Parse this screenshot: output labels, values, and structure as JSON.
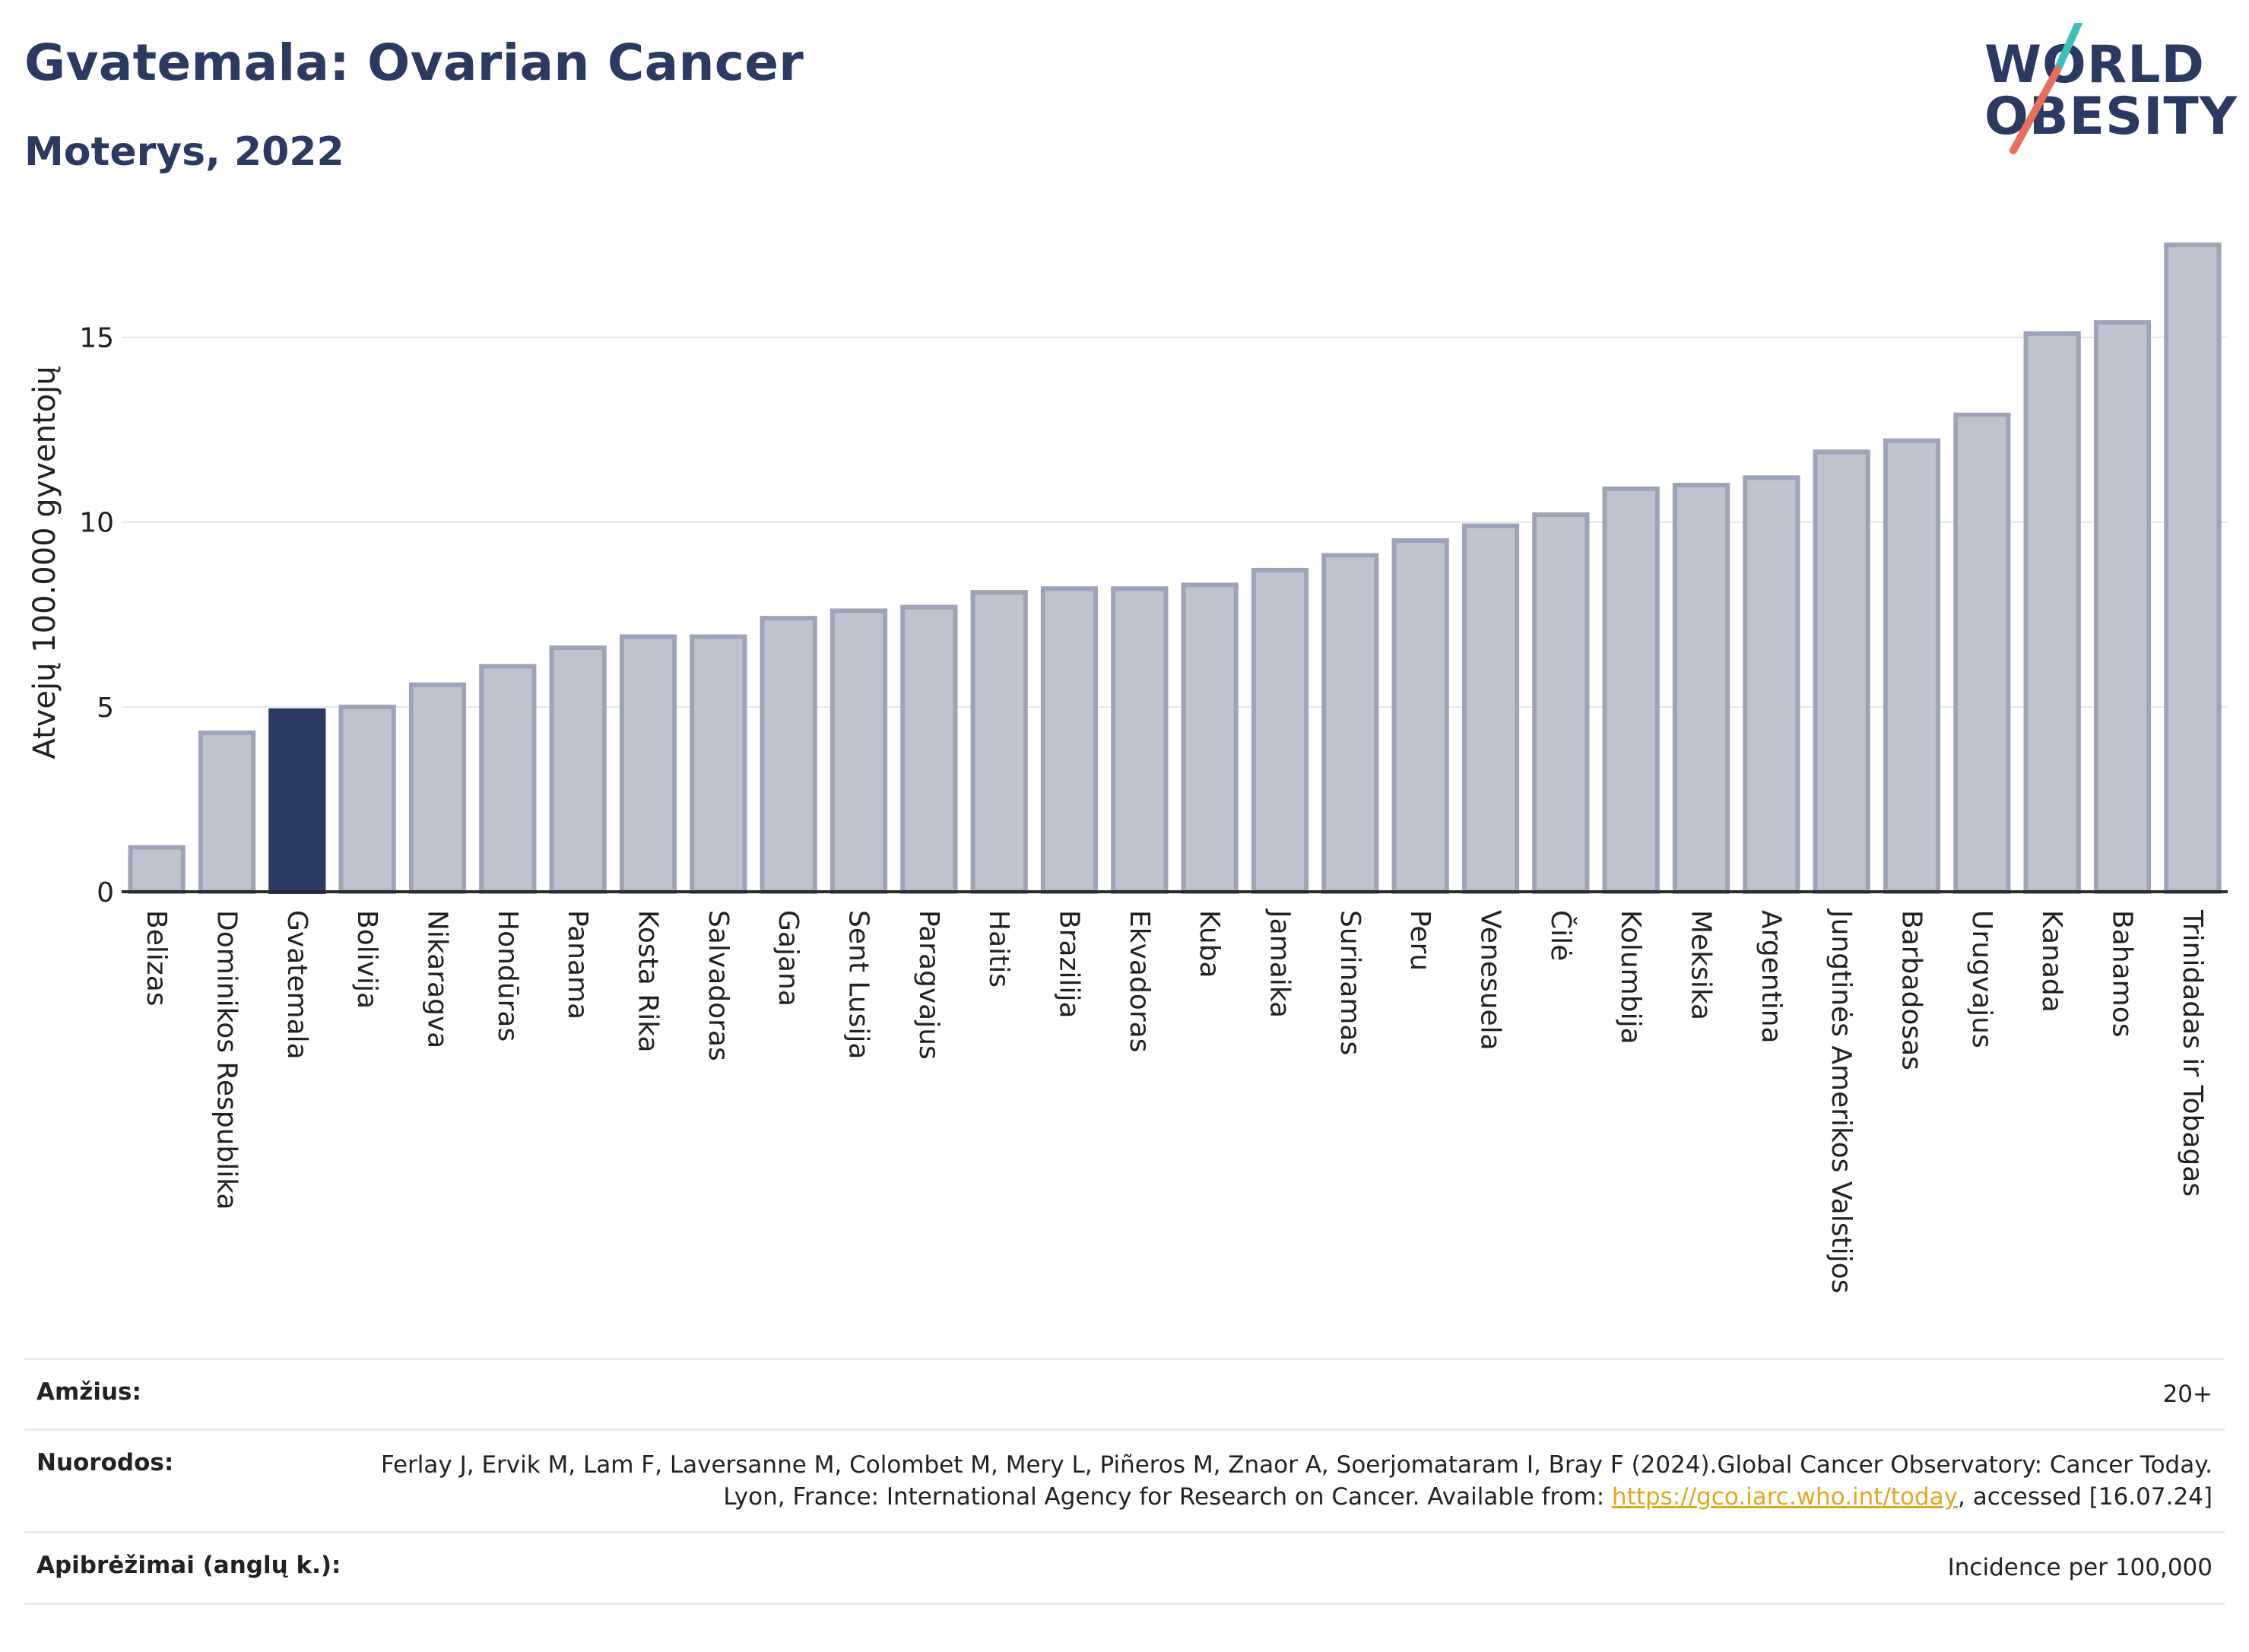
{
  "header": {
    "title": "Gvatemala: Ovarian Cancer",
    "subtitle": "Moterys, 2022"
  },
  "logo": {
    "line1": "WORLD",
    "line2": "OBESITY",
    "colors": {
      "text": "#2b3a63",
      "slash_teal": "#3bbfb6",
      "slash_red": "#e8705a"
    }
  },
  "chart_data": {
    "type": "bar",
    "ylabel": "Atvejų 100.000 gyventojų",
    "ylim": [
      0,
      17.5
    ],
    "yticks": [
      0,
      5,
      10,
      15
    ],
    "grid": true,
    "highlight": "Gvatemala",
    "colors": {
      "bar": "#bfc3cf",
      "bar_edge": "#9ea3b8",
      "highlight": "#2b3a63"
    },
    "categories": [
      "Belizas",
      "Dominikos Respublika",
      "Gvatemala",
      "Bolivija",
      "Nikaragva",
      "Hondūras",
      "Panama",
      "Kosta Rika",
      "Salvadoras",
      "Gajana",
      "Sent Lusija",
      "Paragvajus",
      "Haitis",
      "Brazilija",
      "Ekvadoras",
      "Kuba",
      "Jamaika",
      "Surinamas",
      "Peru",
      "Venesuela",
      "Čilė",
      "Kolumbija",
      "Meksika",
      "Argentina",
      "Jungtinės Amerikos Valstijos",
      "Barbadosas",
      "Urugvajus",
      "Kanada",
      "Bahamos",
      "Trinidadas ir Tobagas"
    ],
    "values": [
      1.2,
      4.3,
      4.9,
      5.0,
      5.6,
      6.1,
      6.6,
      6.9,
      6.9,
      7.4,
      7.6,
      7.7,
      8.1,
      8.2,
      8.2,
      8.3,
      8.7,
      9.1,
      9.5,
      9.9,
      10.2,
      10.9,
      11.0,
      11.2,
      11.9,
      12.2,
      12.9,
      15.1,
      15.4,
      17.5
    ]
  },
  "info": {
    "age_label": "Amžius:",
    "age_value": "20+",
    "refs_label": "Nuorodos:",
    "refs_text": "Ferlay J, Ervik M, Lam F, Laversanne M, Colombet M, Mery L, Piñeros M, Znaor A, Soerjomataram I, Bray F (2024).Global Cancer Observatory: Cancer Today. Lyon, France: International Agency for Research on Cancer. Available from: ",
    "refs_link": "https://gco.iarc.who.int/today",
    "refs_suffix": ", accessed [16.07.24]",
    "def_label": "Apibrėžimai (anglų k.):",
    "def_value": "Incidence per 100,000"
  }
}
